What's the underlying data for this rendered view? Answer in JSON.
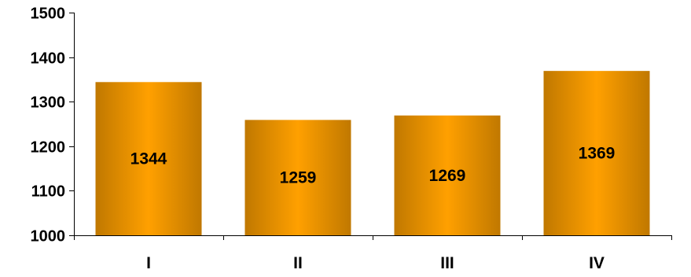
{
  "chart_data": {
    "type": "bar",
    "categories": [
      "I",
      "II",
      "III",
      "IV"
    ],
    "values": [
      1344,
      1259,
      1269,
      1369
    ],
    "data_labels": [
      "1344",
      "1259",
      "1269",
      "1369"
    ],
    "title": "",
    "xlabel": "",
    "ylabel": "",
    "ylim": [
      1000,
      1500
    ],
    "yticks": [
      1000,
      1100,
      1200,
      1300,
      1400,
      1500
    ],
    "ytick_labels": [
      "1000",
      "1100",
      "1200",
      "1300",
      "1400",
      "1500"
    ],
    "grid": false,
    "legend": "none",
    "bar_colors": {
      "edge": "#c07800",
      "center": "#ffa000"
    }
  }
}
